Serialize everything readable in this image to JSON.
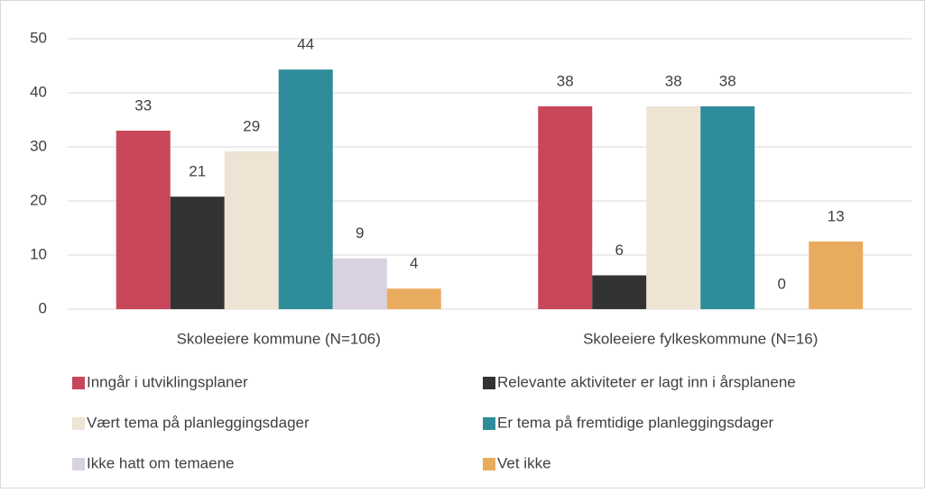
{
  "chart_data": {
    "type": "bar",
    "categories": [
      "Skoleeiere kommune (N=106)",
      "Skoleeiere fylkeskommune (N=16)"
    ],
    "series": [
      {
        "name": "Inngår i utviklingsplaner",
        "color": "#c8475a",
        "values": [
          33,
          37.5
        ],
        "value_labels": [
          "33",
          "38"
        ]
      },
      {
        "name": "Relevante aktiviteter er lagt inn i årsplanene",
        "color": "#333333",
        "values": [
          20.8,
          6.25
        ],
        "value_labels": [
          "21",
          "6"
        ]
      },
      {
        "name": "Vært tema på planleggingsdager",
        "color": "#efe3d3",
        "values": [
          29.2,
          37.5
        ],
        "value_labels": [
          "29",
          "38"
        ]
      },
      {
        "name": "Er tema på fremtidige planleggingsdager",
        "color": "#2e8c9b",
        "values": [
          44.3,
          37.5
        ],
        "value_labels": [
          "44",
          "38"
        ]
      },
      {
        "name": "Ikke hatt om temaene",
        "color": "#d9d1e0",
        "values": [
          9.4,
          0
        ],
        "value_labels": [
          "9",
          "0"
        ]
      },
      {
        "name": "Vet ikke",
        "color": "#e9ac5f",
        "values": [
          3.8,
          12.5
        ],
        "value_labels": [
          "4",
          "13"
        ]
      }
    ],
    "ylim": [
      0,
      50
    ],
    "yticks": [
      0,
      10,
      20,
      30,
      40,
      50
    ],
    "grid": true
  }
}
